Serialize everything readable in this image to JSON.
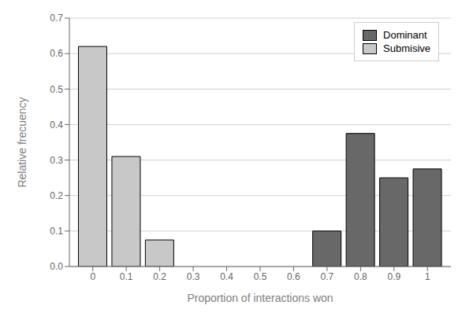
{
  "chart_data": {
    "type": "bar",
    "x": [
      0.0,
      0.1,
      0.2,
      0.7,
      0.8,
      0.9,
      1.0
    ],
    "series": [
      {
        "name": "Submisive",
        "color": "#c8c8c8",
        "values": [
          0.62,
          0.31,
          0.075,
          null,
          null,
          null,
          null
        ]
      },
      {
        "name": "Dominant",
        "color": "#686868",
        "values": [
          null,
          null,
          null,
          0.1,
          0.375,
          0.25,
          0.275
        ]
      }
    ],
    "xlim": [
      -0.07,
      1.07
    ],
    "ylim": [
      0.0,
      0.7
    ],
    "xticks": [
      0.0,
      0.1,
      0.2,
      0.3,
      0.4,
      0.5,
      0.6,
      0.7,
      0.8,
      0.9,
      1.0
    ],
    "yticks": [
      {
        "value": 0.0,
        "label": "0.0"
      },
      0.1,
      0.2,
      0.3,
      0.4,
      0.5,
      0.6,
      0.7
    ],
    "xlabel": "Proportion of interactions won",
    "ylabel": "Relative frecuency",
    "grid": true,
    "legend": "upper right"
  }
}
